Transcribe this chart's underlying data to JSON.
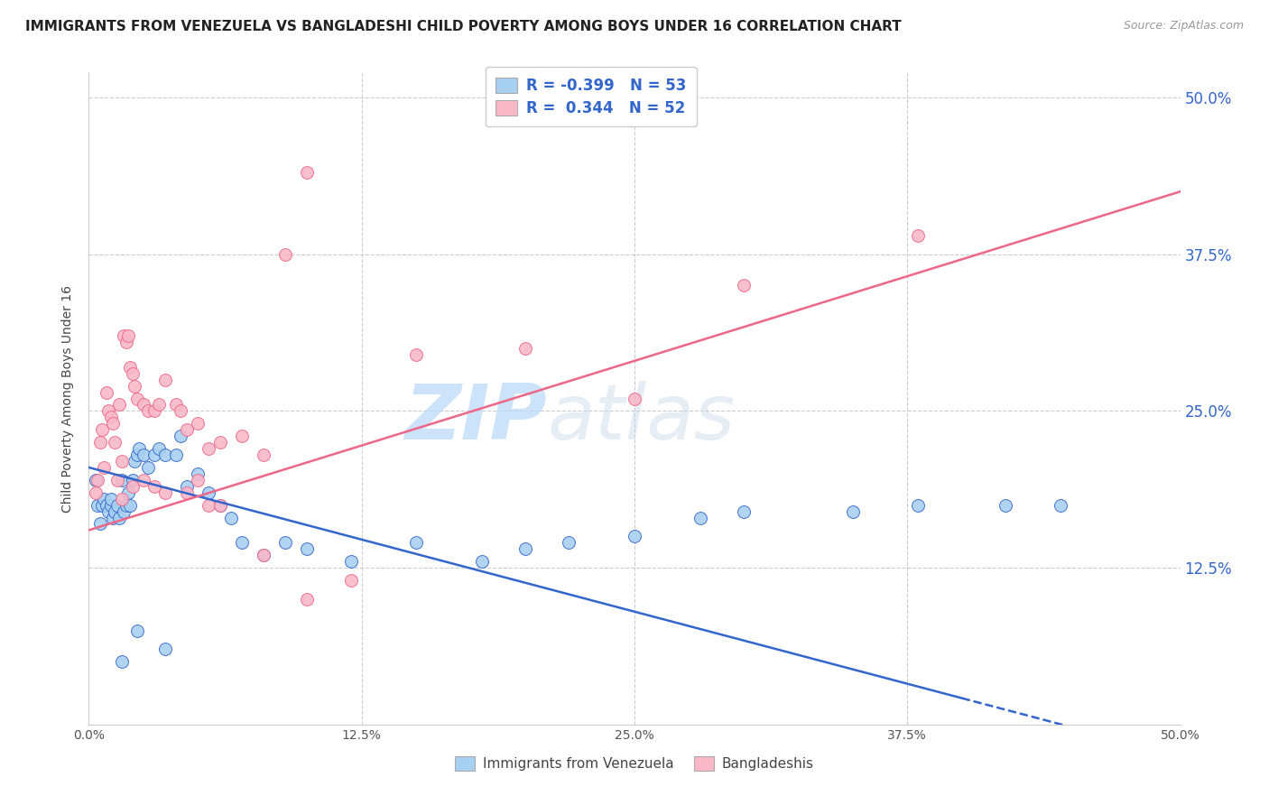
{
  "title": "IMMIGRANTS FROM VENEZUELA VS BANGLADESHI CHILD POVERTY AMONG BOYS UNDER 16 CORRELATION CHART",
  "source": "Source: ZipAtlas.com",
  "ylabel": "Child Poverty Among Boys Under 16",
  "ytick_values": [
    0,
    0.125,
    0.25,
    0.375,
    0.5
  ],
  "ytick_labels": [
    "",
    "12.5%",
    "25.0%",
    "37.5%",
    "50.0%"
  ],
  "xtick_values": [
    0,
    0.125,
    0.25,
    0.375,
    0.5
  ],
  "xtick_labels": [
    "0.0%",
    "12.5%",
    "25.0%",
    "37.5%",
    "50.0%"
  ],
  "xlim": [
    0,
    0.5
  ],
  "ylim": [
    0,
    0.52
  ],
  "legend_r1": "-0.399",
  "legend_n1": "53",
  "legend_r2": "0.344",
  "legend_n2": "52",
  "color_blue": "#A8D0F0",
  "color_pink": "#F8B8C8",
  "line_blue": "#3366CC",
  "line_pink": "#EE6688",
  "watermark_zip": "ZIP",
  "watermark_atlas": "atlas",
  "title_fontsize": 11,
  "axis_label_fontsize": 10,
  "tick_fontsize": 10,
  "blue_x": [
    0.003,
    0.004,
    0.005,
    0.006,
    0.007,
    0.008,
    0.009,
    0.01,
    0.01,
    0.011,
    0.012,
    0.013,
    0.014,
    0.015,
    0.016,
    0.017,
    0.018,
    0.019,
    0.02,
    0.021,
    0.022,
    0.023,
    0.025,
    0.027,
    0.03,
    0.032,
    0.035,
    0.04,
    0.042,
    0.045,
    0.05,
    0.055,
    0.06,
    0.065,
    0.07,
    0.08,
    0.09,
    0.1,
    0.12,
    0.15,
    0.18,
    0.2,
    0.22,
    0.25,
    0.28,
    0.3,
    0.35,
    0.38,
    0.42,
    0.445,
    0.015,
    0.022,
    0.035
  ],
  "blue_y": [
    0.195,
    0.175,
    0.16,
    0.175,
    0.18,
    0.175,
    0.17,
    0.175,
    0.18,
    0.165,
    0.17,
    0.175,
    0.165,
    0.195,
    0.17,
    0.175,
    0.185,
    0.175,
    0.195,
    0.21,
    0.215,
    0.22,
    0.215,
    0.205,
    0.215,
    0.22,
    0.215,
    0.215,
    0.23,
    0.19,
    0.2,
    0.185,
    0.175,
    0.165,
    0.145,
    0.135,
    0.145,
    0.14,
    0.13,
    0.145,
    0.13,
    0.14,
    0.145,
    0.15,
    0.165,
    0.17,
    0.17,
    0.175,
    0.175,
    0.175,
    0.05,
    0.075,
    0.06
  ],
  "pink_x": [
    0.003,
    0.004,
    0.005,
    0.006,
    0.007,
    0.008,
    0.009,
    0.01,
    0.011,
    0.012,
    0.013,
    0.014,
    0.015,
    0.016,
    0.017,
    0.018,
    0.019,
    0.02,
    0.021,
    0.022,
    0.025,
    0.027,
    0.03,
    0.032,
    0.035,
    0.04,
    0.042,
    0.045,
    0.05,
    0.055,
    0.06,
    0.07,
    0.08,
    0.09,
    0.1,
    0.15,
    0.2,
    0.25,
    0.3,
    0.38,
    0.015,
    0.02,
    0.025,
    0.03,
    0.035,
    0.045,
    0.05,
    0.055,
    0.06,
    0.08,
    0.1,
    0.12
  ],
  "pink_y": [
    0.185,
    0.195,
    0.225,
    0.235,
    0.205,
    0.265,
    0.25,
    0.245,
    0.24,
    0.225,
    0.195,
    0.255,
    0.21,
    0.31,
    0.305,
    0.31,
    0.285,
    0.28,
    0.27,
    0.26,
    0.255,
    0.25,
    0.25,
    0.255,
    0.275,
    0.255,
    0.25,
    0.235,
    0.24,
    0.22,
    0.225,
    0.23,
    0.215,
    0.375,
    0.44,
    0.295,
    0.3,
    0.26,
    0.35,
    0.39,
    0.18,
    0.19,
    0.195,
    0.19,
    0.185,
    0.185,
    0.195,
    0.175,
    0.175,
    0.135,
    0.1,
    0.115
  ]
}
